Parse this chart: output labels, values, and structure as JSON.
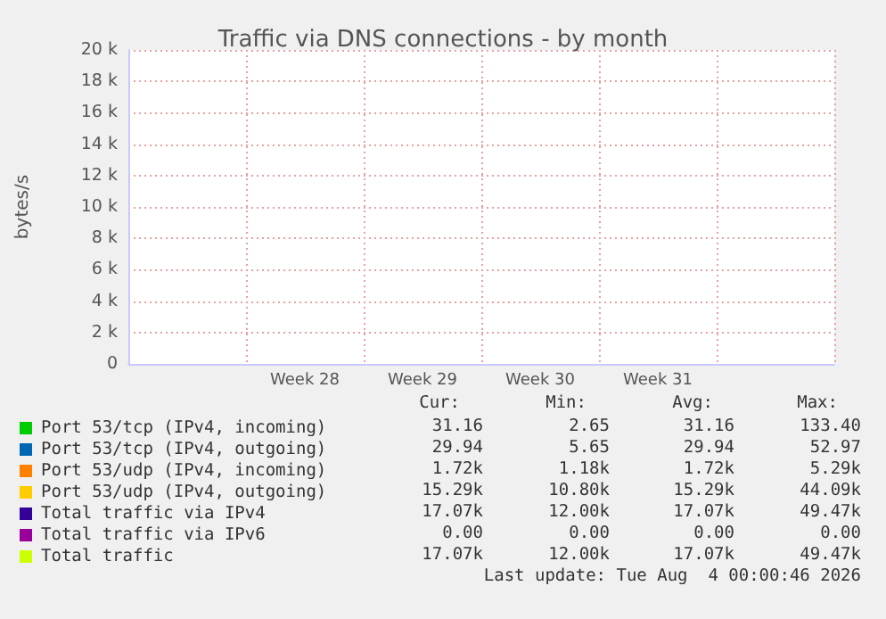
{
  "chart_data": {
    "type": "line",
    "title": "Traffic via DNS connections - by month",
    "ylabel": "bytes/s",
    "categories": [
      null,
      "Week 28",
      "Week 29",
      "Week 30",
      "Week 31",
      null
    ],
    "ylim": [
      0,
      20000
    ],
    "yticks": [
      0,
      {
        "value": 2000,
        "label": "2 k"
      },
      {
        "value": 4000,
        "label": "4 k"
      },
      {
        "value": 6000,
        "label": "6 k"
      },
      {
        "value": 8000,
        "label": "8 k"
      },
      {
        "value": 10000,
        "label": "10 k"
      },
      {
        "value": 12000,
        "label": "12 k"
      },
      {
        "value": 14000,
        "label": "14 k"
      },
      {
        "value": 16000,
        "label": "16 k"
      },
      {
        "value": 18000,
        "label": "18 k"
      },
      {
        "value": 20000,
        "label": "20 k"
      }
    ],
    "grid": true,
    "legend": "bottom",
    "series": [
      {
        "name": "Port 53/tcp (IPv4, incoming)",
        "color": "#00cc00",
        "values": [
          null,
          null,
          null,
          null,
          null,
          null
        ]
      },
      {
        "name": "Port 53/tcp (IPv4, outgoing)",
        "color": "#0066b3",
        "values": [
          null,
          null,
          null,
          null,
          null,
          null
        ]
      },
      {
        "name": "Port 53/udp (IPv4, incoming)",
        "color": "#ff8000",
        "values": [
          null,
          null,
          null,
          null,
          null,
          null
        ]
      },
      {
        "name": "Port 53/udp (IPv4, outgoing)",
        "color": "#ffcc00",
        "values": [
          null,
          null,
          null,
          null,
          null,
          null
        ]
      },
      {
        "name": "Total traffic via IPv4",
        "color": "#330099",
        "values": [
          null,
          null,
          null,
          null,
          null,
          null
        ]
      },
      {
        "name": "Total traffic via IPv6",
        "color": "#990099",
        "values": [
          null,
          null,
          null,
          null,
          null,
          null
        ]
      },
      {
        "name": "Total traffic",
        "color": "#ccff00",
        "values": [
          null,
          null,
          null,
          null,
          null,
          null
        ]
      }
    ],
    "annotations": [
      "Cur:",
      "Min:",
      "Avg:",
      "Max:",
      "31.16",
      "2.65",
      "31.16",
      "133.40",
      "29.94",
      "5.65",
      "29.94",
      "52.97",
      "1.72k",
      "1.18k",
      "1.72k",
      "5.29k",
      "15.29k",
      "10.80k",
      "15.29k",
      "44.09k",
      "17.07k",
      "12.00k",
      "17.07k",
      "49.47k",
      "0.00",
      "0.00",
      "0.00",
      "0.00",
      "17.07k",
      "12.00k",
      "17.07k",
      "49.47k",
      "Last update: Tue Aug  4 00:00:46 2026"
    ]
  }
}
